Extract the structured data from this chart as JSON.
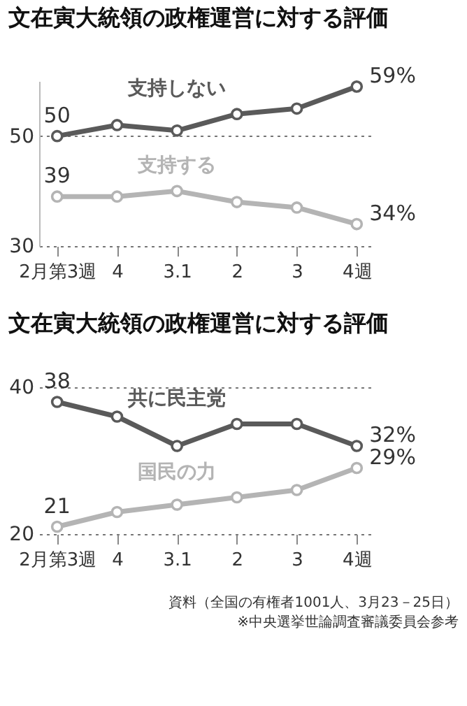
{
  "chart_data": [
    {
      "type": "line",
      "title": "文在寅大統領の政権運営に対する評価",
      "categories": [
        "2月第3週",
        "4",
        "3.1",
        "2",
        "3",
        "4週"
      ],
      "ylim": [
        30,
        60
      ],
      "yticks": [
        30,
        50
      ],
      "grid": "y",
      "marker": "circle",
      "series": [
        {
          "name": "支持しない",
          "color": "#5a5a5a",
          "values": [
            50,
            52,
            51,
            54,
            55,
            59
          ],
          "value_labels": [
            "50",
            null,
            null,
            null,
            null,
            "59%"
          ]
        },
        {
          "name": "支持する",
          "color": "#b4b4b4",
          "values": [
            39,
            39,
            40,
            38,
            37,
            34
          ],
          "value_labels": [
            "39",
            null,
            null,
            null,
            null,
            "34%"
          ]
        }
      ]
    },
    {
      "type": "line",
      "title": "文在寅大統領の政権運営に対する評価",
      "categories": [
        "2月第3週",
        "4",
        "3.1",
        "2",
        "3",
        "4週"
      ],
      "ylim": [
        20,
        40
      ],
      "yticks": [
        20,
        40
      ],
      "grid": "y",
      "marker": "circle",
      "annotations": [
        "資料（全国の有権者1001人、3月23－25日）",
        "※中央選挙世論調査審議委員会参考"
      ],
      "series": [
        {
          "name": "共に民主党",
          "color": "#5a5a5a",
          "values": [
            38,
            36,
            32,
            35,
            35,
            32
          ],
          "value_labels": [
            "38",
            null,
            null,
            null,
            null,
            "32%"
          ]
        },
        {
          "name": "国民の力",
          "color": "#b4b4b4",
          "values": [
            21,
            23,
            24,
            25,
            26,
            29
          ],
          "value_labels": [
            "21",
            null,
            null,
            null,
            null,
            "29%"
          ]
        }
      ]
    }
  ]
}
